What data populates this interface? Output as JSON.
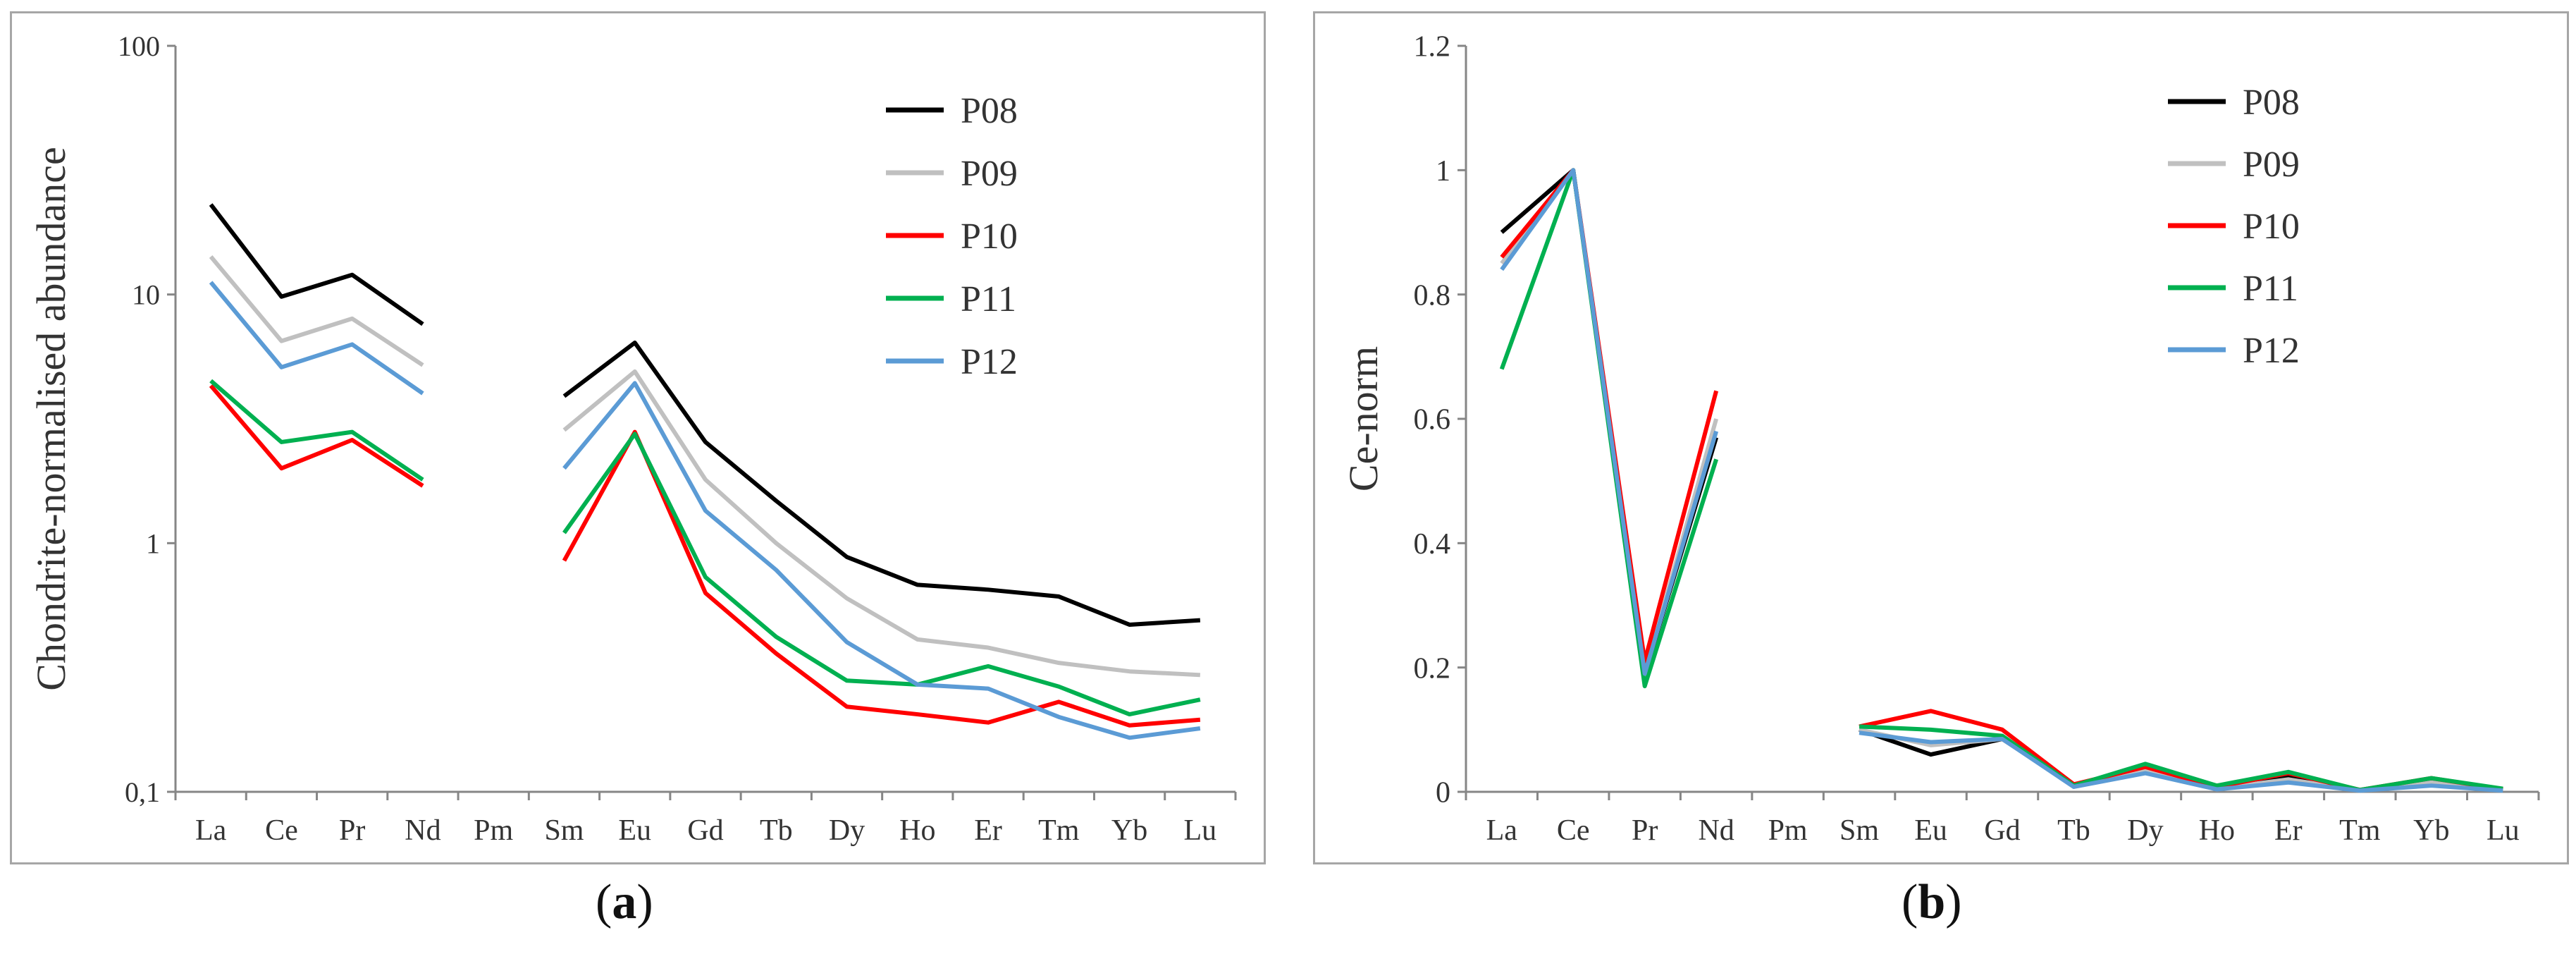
{
  "chart_data": [
    {
      "type": "line",
      "id": "a",
      "panel_label": "a",
      "scale": "log",
      "title": "",
      "xlabel": "",
      "ylabel": "Chondrite-normalised  abundance",
      "categories": [
        "La",
        "Ce",
        "Pr",
        "Nd",
        "Pm",
        "Sm",
        "Eu",
        "Gd",
        "Tb",
        "Dy",
        "Ho",
        "Er",
        "Tm",
        "Yb",
        "Lu"
      ],
      "ylim": [
        0.1,
        100
      ],
      "yticks": [
        0.1,
        1,
        10,
        100
      ],
      "ytick_labels": [
        "0,1",
        "1",
        "10",
        "100"
      ],
      "grid": false,
      "legend_position": "top-right",
      "series": [
        {
          "name": "P08",
          "color": "#000000",
          "values": [
            23,
            9.8,
            12,
            7.6,
            null,
            3.9,
            6.4,
            2.55,
            1.48,
            0.88,
            0.68,
            0.65,
            0.61,
            0.47,
            0.49
          ]
        },
        {
          "name": "P09",
          "color": "#c0c0c0",
          "values": [
            14.2,
            6.5,
            8.0,
            5.2,
            null,
            2.85,
            4.9,
            1.8,
            1.0,
            0.6,
            0.41,
            0.38,
            0.33,
            0.305,
            0.295
          ]
        },
        {
          "name": "P10",
          "color": "#ff0000",
          "values": [
            4.3,
            2.0,
            2.6,
            1.7,
            null,
            0.85,
            2.8,
            0.63,
            0.36,
            0.22,
            0.205,
            0.19,
            0.23,
            0.185,
            0.195
          ]
        },
        {
          "name": "P11",
          "color": "#00b050",
          "values": [
            4.5,
            2.55,
            2.8,
            1.8,
            null,
            1.1,
            2.75,
            0.73,
            0.42,
            0.28,
            0.27,
            0.32,
            0.265,
            0.205,
            0.235
          ]
        },
        {
          "name": "P12",
          "color": "#5b9bd5",
          "values": [
            11.2,
            5.1,
            6.3,
            4.0,
            null,
            2.0,
            4.4,
            1.35,
            0.78,
            0.4,
            0.27,
            0.26,
            0.2,
            0.165,
            0.18
          ]
        }
      ]
    },
    {
      "type": "line",
      "id": "b",
      "panel_label": "b",
      "scale": "linear",
      "title": "",
      "xlabel": "",
      "ylabel": "Ce-norm",
      "categories": [
        "La",
        "Ce",
        "Pr",
        "Nd",
        "Pm",
        "Sm",
        "Eu",
        "Gd",
        "Tb",
        "Dy",
        "Ho",
        "Er",
        "Tm",
        "Yb",
        "Lu"
      ],
      "ylim": [
        0,
        1.2
      ],
      "yticks": [
        0,
        0.2,
        0.4,
        0.6,
        0.8,
        1,
        1.2
      ],
      "ytick_labels": [
        "0",
        "0.2",
        "0.4",
        "0.6",
        "0.8",
        "1",
        "1.2"
      ],
      "grid": false,
      "legend_position": "top-right",
      "series": [
        {
          "name": "P08",
          "color": "#000000",
          "values": [
            0.9,
            1.0,
            0.19,
            0.57,
            null,
            0.1,
            0.06,
            0.085,
            0.01,
            0.04,
            0.005,
            0.025,
            0.002,
            0.02,
            0.003
          ]
        },
        {
          "name": "P09",
          "color": "#c0c0c0",
          "values": [
            0.85,
            1.0,
            0.19,
            0.6,
            null,
            0.1,
            0.075,
            0.085,
            0.01,
            0.035,
            0.005,
            0.02,
            0.002,
            0.015,
            0.003
          ]
        },
        {
          "name": "P10",
          "color": "#ff0000",
          "values": [
            0.86,
            1.0,
            0.21,
            0.645,
            null,
            0.105,
            0.13,
            0.1,
            0.012,
            0.04,
            0.008,
            0.03,
            0.003,
            0.022,
            0.004
          ]
        },
        {
          "name": "P11",
          "color": "#00b050",
          "values": [
            0.68,
            1.0,
            0.17,
            0.535,
            null,
            0.105,
            0.1,
            0.09,
            0.01,
            0.045,
            0.01,
            0.032,
            0.003,
            0.022,
            0.005
          ]
        },
        {
          "name": "P12",
          "color": "#5b9bd5",
          "values": [
            0.84,
            1.0,
            0.19,
            0.58,
            null,
            0.095,
            0.08,
            0.085,
            0.008,
            0.03,
            0.004,
            0.015,
            0.002,
            0.01,
            0.002
          ]
        }
      ]
    }
  ]
}
